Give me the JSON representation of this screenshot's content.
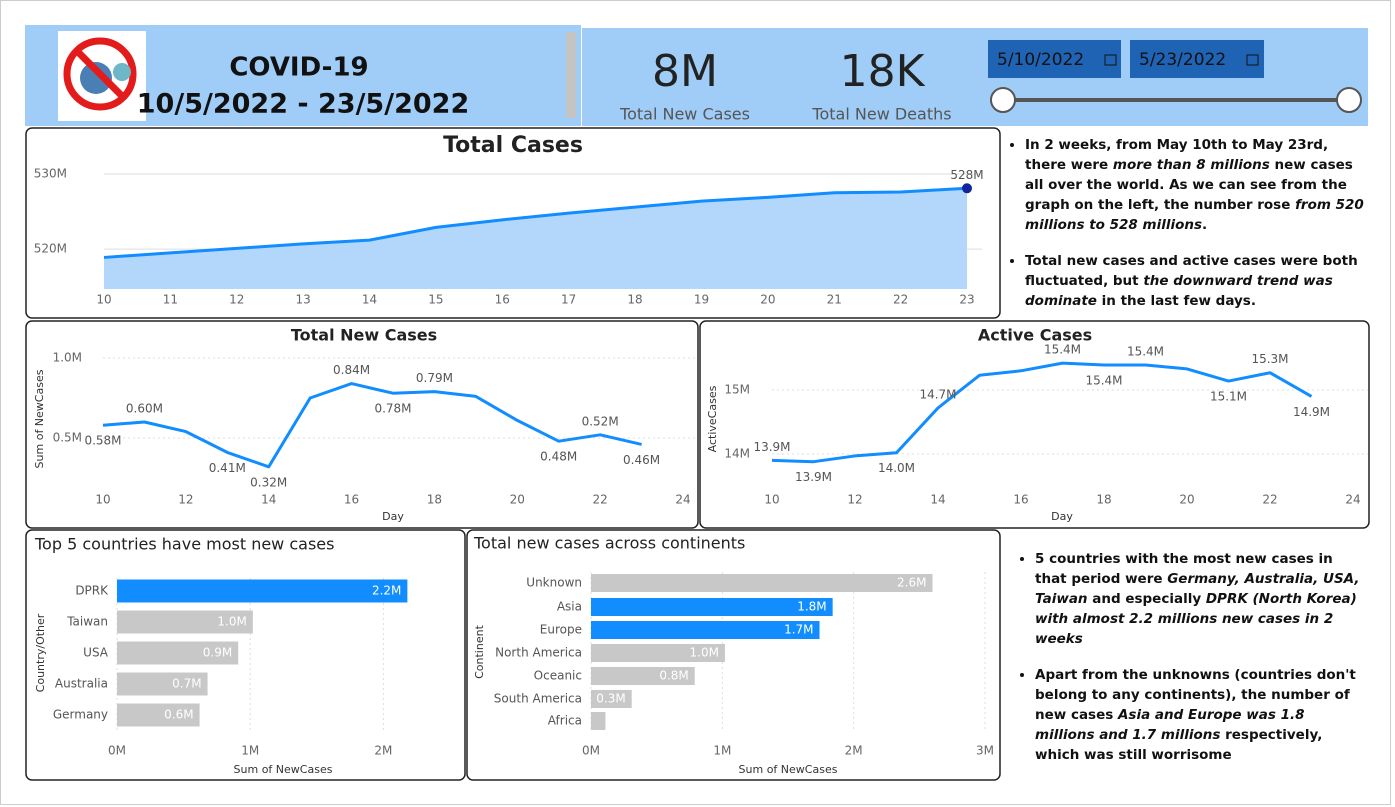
{
  "header": {
    "title": "COVID-19",
    "date_range": "10/5/2022 - 23/5/2022"
  },
  "kpis": [
    {
      "value": "8M",
      "label": "Total New Cases"
    },
    {
      "value": "18K",
      "label": "Total New Deaths"
    }
  ],
  "date_filter": {
    "start": "5/10/2022",
    "end": "5/23/2022"
  },
  "chart_data": [
    {
      "type": "area",
      "title": "Total Cases",
      "x": [
        10,
        11,
        12,
        13,
        14,
        15,
        16,
        17,
        18,
        19,
        20,
        21,
        22,
        23
      ],
      "values": [
        518900000,
        519500000,
        520100000,
        520700000,
        521200000,
        522900000,
        523900000,
        524800000,
        525600000,
        526400000,
        526900000,
        527500000,
        527600000,
        528100000
      ],
      "value_labels": [
        null,
        null,
        null,
        null,
        null,
        null,
        null,
        null,
        null,
        null,
        null,
        null,
        null,
        "528M"
      ],
      "color": "#118dff",
      "fill": "#b3d7fb",
      "marker_color": "#12239e",
      "xlim": [
        10,
        23
      ],
      "xticks": [
        10,
        11,
        12,
        13,
        14,
        15,
        16,
        17,
        18,
        19,
        20,
        21,
        22,
        23
      ],
      "ylim": [
        514700000,
        531200000
      ],
      "yticks": [
        {
          "value": 520000000,
          "label": "520M"
        },
        {
          "value": 530000000,
          "label": "530M"
        }
      ],
      "grid": true
    },
    {
      "type": "line",
      "title": "Total New Cases",
      "xlabel": "Day",
      "ylabel": "Sum of NewCases",
      "x": [
        10,
        11,
        12,
        13,
        14,
        15,
        16,
        17,
        18,
        19,
        20,
        21,
        22,
        23
      ],
      "values": [
        580000,
        600000,
        540000,
        410000,
        320000,
        750000,
        840000,
        780000,
        790000,
        760000,
        610000,
        480000,
        520000,
        460000
      ],
      "value_labels": [
        "0.58M",
        "0.60M",
        null,
        "0.41M",
        "0.32M",
        null,
        "0.84M",
        "0.78M",
        "0.79M",
        null,
        null,
        "0.48M",
        "0.52M",
        "0.46M"
      ],
      "color": "#118dff",
      "xlim": [
        10,
        24
      ],
      "xticks": [
        10,
        12,
        14,
        16,
        18,
        20,
        22,
        24
      ],
      "ylim": [
        175000,
        1062500
      ],
      "yticks": [
        {
          "value": 500000,
          "label": "0.5M"
        },
        {
          "value": 1000000,
          "label": "1.0M"
        }
      ],
      "grid": true
    },
    {
      "type": "line",
      "title": "Active Cases",
      "xlabel": "Day",
      "ylabel": "ActiveCases",
      "x": [
        10,
        11,
        12,
        13,
        14,
        15,
        16,
        17,
        18,
        19,
        20,
        21,
        22,
        23
      ],
      "values": [
        13900000,
        13880000,
        13970000,
        14020000,
        14720000,
        15230000,
        15300000,
        15420000,
        15390000,
        15390000,
        15330000,
        15140000,
        15270000,
        14900000
      ],
      "value_labels": [
        "13.9M",
        "13.9M",
        null,
        "14.0M",
        "14.7M",
        null,
        null,
        "15.4M",
        "15.4M",
        "15.4M",
        null,
        "15.1M",
        "15.3M",
        "14.9M"
      ],
      "color": "#118dff",
      "xlim": [
        10,
        24
      ],
      "xticks": [
        10,
        12,
        14,
        16,
        18,
        20,
        22,
        24
      ],
      "ylim": [
        13469000,
        15625000
      ],
      "yticks": [
        {
          "value": 14000000,
          "label": "14M"
        },
        {
          "value": 15000000,
          "label": "15M"
        }
      ],
      "grid": true
    },
    {
      "type": "hbar",
      "title": "Top 5 countries have most new cases",
      "xlabel": "Sum of NewCases",
      "ylabel": "Country/Other",
      "categories": [
        "DPRK",
        "Taiwan",
        "USA",
        "Australia",
        "Germany"
      ],
      "values": [
        2180000,
        1020000,
        910000,
        680000,
        620000
      ],
      "value_labels": [
        "2.2M",
        "1.0M",
        "0.9M",
        "0.7M",
        "0.6M"
      ],
      "colors": [
        "#118dff",
        "#c8c8c8",
        "#c8c8c8",
        "#c8c8c8",
        "#c8c8c8"
      ],
      "xlim": [
        0,
        2500000
      ],
      "xticks": [
        {
          "value": 0,
          "label": "0M"
        },
        {
          "value": 1000000,
          "label": "1M"
        },
        {
          "value": 2000000,
          "label": "2M"
        }
      ],
      "grid": true
    },
    {
      "type": "hbar",
      "title": "Total new cases across continents",
      "xlabel": "Sum of NewCases",
      "ylabel": "Continent",
      "categories": [
        "Unknown",
        "Asia",
        "Europe",
        "North America",
        "Oceanic",
        "South America",
        "Africa"
      ],
      "values": [
        2600000,
        1840000,
        1740000,
        1020000,
        790000,
        310000,
        110000
      ],
      "value_labels": [
        "2.6M",
        "1.8M",
        "1.7M",
        "1.0M",
        "0.8M",
        "0.3M",
        null
      ],
      "colors": [
        "#c8c8c8",
        "#118dff",
        "#118dff",
        "#c8c8c8",
        "#c8c8c8",
        "#c8c8c8",
        "#c8c8c8"
      ],
      "xlim": [
        0,
        3000000
      ],
      "xticks": [
        {
          "value": 0,
          "label": "0M"
        },
        {
          "value": 1000000,
          "label": "1M"
        },
        {
          "value": 2000000,
          "label": "2M"
        },
        {
          "value": 3000000,
          "label": "3M"
        }
      ],
      "grid": true
    }
  ],
  "notes": [
    [
      "In 2 weeks, from May 10th to May 23rd, there were ",
      "more than 8 millions",
      " new cases all over the world. As we can see from the graph on the left, the number rose ",
      "from 520 millions to 528 millions",
      "."
    ],
    [
      "Total new cases and active cases were both fluctuated, but ",
      "the downward trend was dominate",
      " in the last few days."
    ],
    [
      "5 countries with the most new cases in that period were ",
      "Germany, Australia, USA, Taiwan",
      " and especially ",
      "DPRK (North Korea) with almost 2.2 millions new cases in 2 weeks"
    ],
    [
      "Apart from the unknowns (countries don't belong to any continents), the number of new cases ",
      "Asia and Europe was 1.8 millions and 1.7 millions",
      " respectively, which was still worrisome"
    ]
  ]
}
